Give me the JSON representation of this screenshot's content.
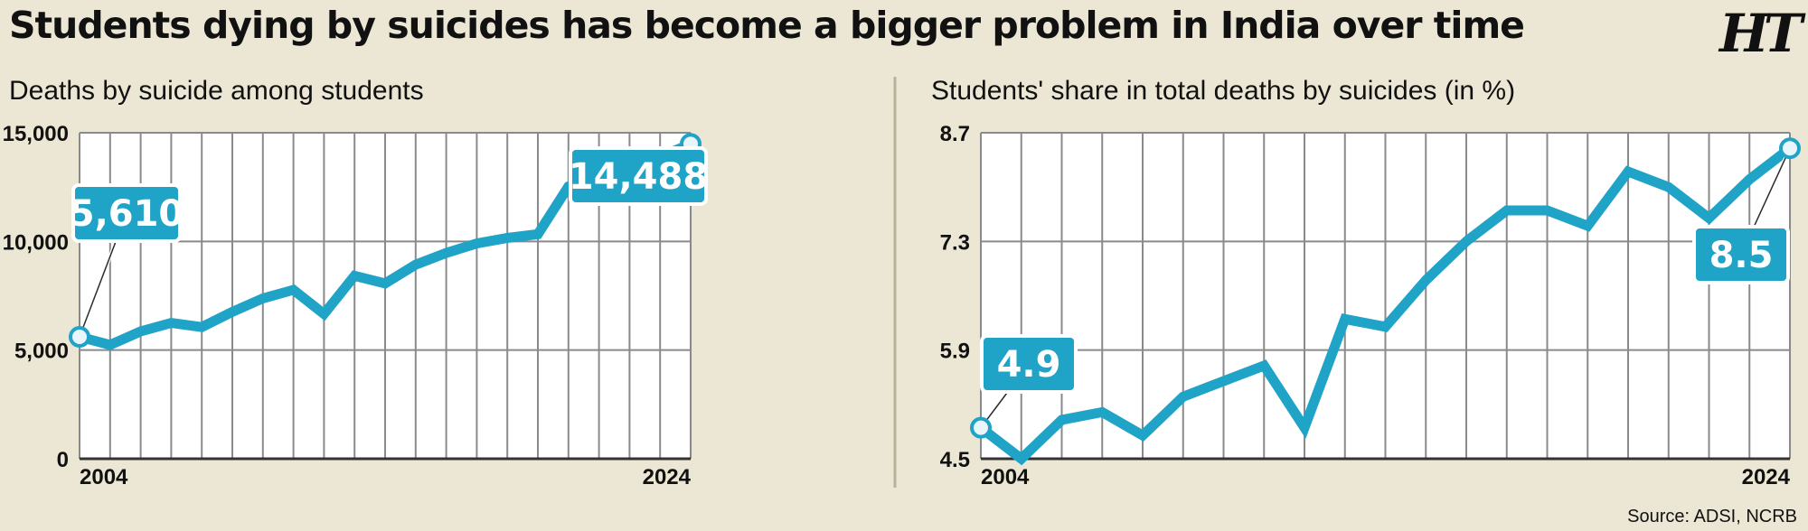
{
  "title": "Students dying by suicides has become a bigger problem in India over time",
  "logo_text": "HT",
  "source": "Source: ADSI, NCRB",
  "colors": {
    "background": "#ece7d4",
    "plot_background": "#ffffff",
    "grid": "#8a8a8a",
    "line": "#1fa3c6",
    "text": "#111111"
  },
  "chart_data": [
    {
      "type": "line",
      "title": "Deaths by suicide among students",
      "x_labels_shown": [
        "2004",
        "2024"
      ],
      "x": [
        2004,
        2005,
        2006,
        2007,
        2008,
        2009,
        2010,
        2011,
        2012,
        2013,
        2014,
        2015,
        2016,
        2017,
        2018,
        2019,
        2020,
        2021,
        2022,
        2023,
        2024
      ],
      "values": [
        5610,
        5240,
        5860,
        6250,
        6060,
        6760,
        7380,
        7770,
        6660,
        8420,
        8070,
        8930,
        9470,
        9905,
        10159,
        10335,
        12526,
        13089,
        13044,
        13892,
        14488
      ],
      "ylim": [
        0,
        15000
      ],
      "yticks": [
        0,
        5000,
        10000,
        15000
      ],
      "ytick_labels": [
        "0",
        "5,000",
        "10,000",
        "15,000"
      ],
      "annotations": [
        {
          "x": 2004,
          "value": 5610,
          "label": "5,610"
        },
        {
          "x": 2024,
          "value": 14488,
          "label": "14,488"
        }
      ],
      "grid": true
    },
    {
      "type": "line",
      "title": "Students' share in total deaths by suicides (in %)",
      "x_labels_shown": [
        "2004",
        "2024"
      ],
      "x": [
        2004,
        2005,
        2006,
        2007,
        2008,
        2009,
        2010,
        2011,
        2012,
        2013,
        2014,
        2015,
        2016,
        2017,
        2018,
        2019,
        2020,
        2021,
        2022,
        2023,
        2024
      ],
      "values": [
        4.9,
        4.5,
        5.0,
        5.1,
        4.8,
        5.3,
        5.5,
        5.7,
        4.9,
        6.3,
        6.2,
        6.8,
        7.3,
        7.7,
        7.7,
        7.5,
        8.2,
        8.0,
        7.6,
        8.1,
        8.5
      ],
      "ylim": [
        4.5,
        8.7
      ],
      "yticks": [
        4.5,
        5.9,
        7.3,
        8.7
      ],
      "ytick_labels": [
        "4.5",
        "5.9",
        "7.3",
        "8.7"
      ],
      "annotations": [
        {
          "x": 2004,
          "value": 4.9,
          "label": "4.9"
        },
        {
          "x": 2024,
          "value": 8.5,
          "label": "8.5"
        }
      ],
      "grid": true
    }
  ]
}
